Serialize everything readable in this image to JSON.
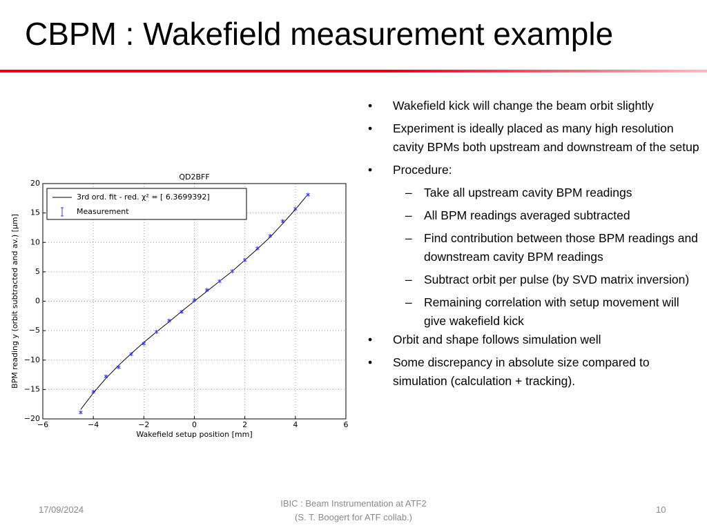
{
  "header": {
    "title": "CBPM : Wakefield measurement example"
  },
  "bullets": [
    {
      "text": "Wakefield kick will change the beam orbit slightly"
    },
    {
      "text": "Experiment is ideally placed as many high resolution cavity BPMs both upstream and downstream of the setup"
    },
    {
      "text": "Procedure:",
      "subitems": [
        "Take all upstream cavity BPM readings",
        "All BPM readings averaged subtracted",
        "Find contribution between those BPM readings and downstream cavity BPM readings",
        "Subtract orbit per pulse (by SVD matrix inversion)",
        "Remaining correlation with setup movement will give wakefield kick"
      ]
    },
    {
      "text": "Orbit and shape follows simulation well"
    },
    {
      "text": "Some discrepancy in absolute size compared to simulation (calculation + tracking)."
    }
  ],
  "footer": {
    "date": "17/09/2024",
    "center": [
      "IBIC : Beam Instrumentation at ATF2",
      "(S. T. Boogert for ATF collab.)"
    ],
    "page": "10"
  },
  "chart_data": {
    "type": "scatter",
    "title": "QD2BFF",
    "x_label": "Wakefield setup position [mm]",
    "y_label": "BPM reading y (orbit subtracted and av.) [μm]",
    "x": [
      -4.5,
      -4,
      -3.5,
      -3,
      -2.5,
      -2,
      -1.5,
      -1,
      -0.5,
      0,
      0.5,
      1,
      1.5,
      2,
      2.5,
      3,
      3.5,
      4,
      4.5
    ],
    "series": [
      {
        "name": "3rd ord. fit - red. χ² = [ 6.3699392]",
        "style": "line",
        "color": "#000000",
        "values": [
          -18.4,
          -15.6,
          -13.1,
          -10.9,
          -8.9,
          -7.0,
          -5.2,
          -3.5,
          -1.7,
          0.0,
          1.7,
          3.4,
          5.1,
          7.0,
          8.9,
          10.9,
          13.2,
          15.6,
          18.2
        ]
      },
      {
        "name": "Measurement",
        "style": "marker",
        "color": "#3333ff",
        "values": [
          -18.9,
          -15.4,
          -12.8,
          -11.2,
          -9.0,
          -7.2,
          -5.2,
          -3.3,
          -1.8,
          0.2,
          1.9,
          3.4,
          5.1,
          7.0,
          9.0,
          11.1,
          13.6,
          15.7,
          18.1
        ]
      }
    ],
    "xlim": [
      -6,
      6
    ],
    "xticks": [
      {
        "value": -6,
        "label": "−6"
      },
      {
        "value": -4,
        "label": "−4"
      },
      {
        "value": -2,
        "label": "−2"
      },
      0,
      2,
      4,
      6
    ],
    "ylim": [
      -20,
      20
    ],
    "yticks": [
      {
        "value": -20,
        "label": "−20"
      },
      {
        "value": -15,
        "label": "−15"
      },
      {
        "value": -10,
        "label": "−10"
      },
      {
        "value": -5,
        "label": "−5"
      },
      0,
      5,
      10,
      15,
      20
    ],
    "grid": true,
    "legend": "upper left"
  }
}
